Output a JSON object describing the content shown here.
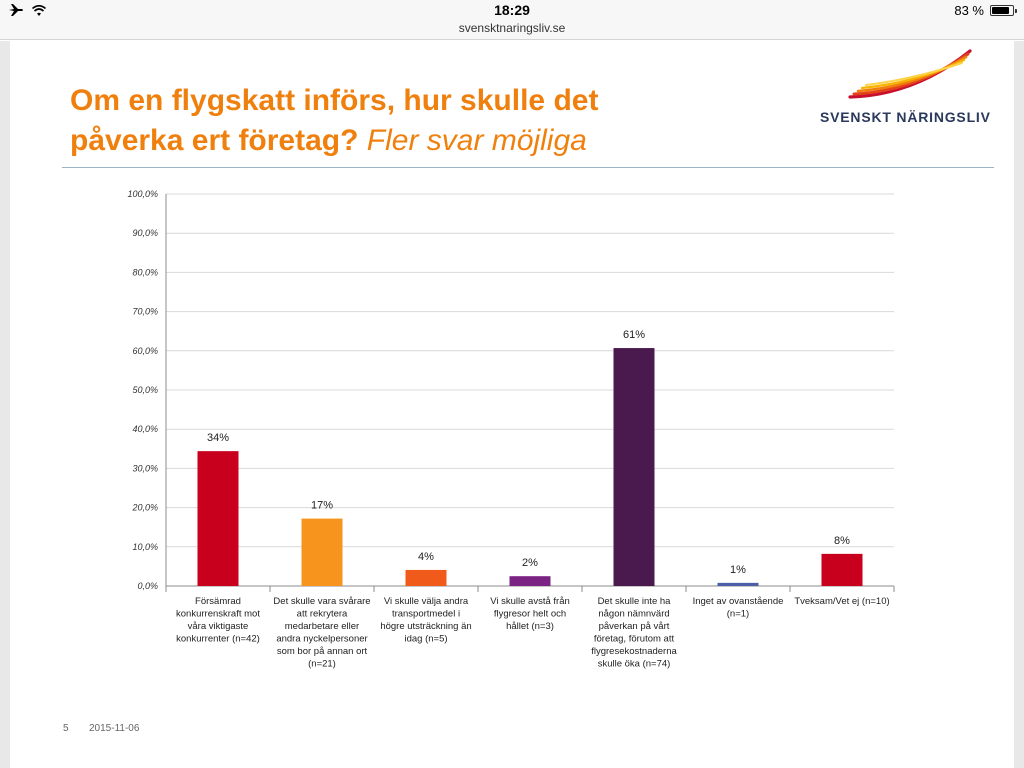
{
  "status_bar": {
    "airplane_icon": "airplane-icon",
    "wifi_icon": "wifi-icon",
    "time": "18:29",
    "url": "svensktnaringsliv.se",
    "battery_percent_text": "83 %",
    "battery_level": 0.83
  },
  "slide": {
    "title_main": "Om en flygskatt införs, hur skulle det påverka ert företag?",
    "title_sub": "Fler svar möjliga",
    "logo_text": "SVENSKT NÄRINGSLIV",
    "logo_colors": [
      "#c8102e",
      "#e4421a",
      "#f0800e",
      "#f7b500",
      "#fcd34a"
    ],
    "page_number": "5",
    "date": "2015-11-06"
  },
  "chart_data": {
    "type": "bar",
    "title": "",
    "xlabel": "",
    "ylabel": "",
    "ylim": [
      0,
      100
    ],
    "grid": true,
    "y_ticks": [
      "0,0%",
      "10,0%",
      "20,0%",
      "30,0%",
      "40,0%",
      "50,0%",
      "60,0%",
      "70,0%",
      "80,0%",
      "90,0%",
      "100,0%"
    ],
    "categories": [
      [
        "Försämrad",
        "konkurrenskraft mot",
        "våra viktigaste",
        "konkurrenter (n=42)"
      ],
      [
        "Det skulle vara svårare",
        "att rekrytera",
        "medarbetare eller",
        "andra nyckelpersoner",
        "som bor på annan ort",
        "(n=21)"
      ],
      [
        "Vi skulle välja andra",
        "transportmedel i",
        "högre utsträckning än",
        "idag (n=5)"
      ],
      [
        "Vi skulle avstå från",
        "flygresor helt och",
        "hållet (n=3)"
      ],
      [
        "Det skulle inte ha",
        "någon nämnvärd",
        "påverkan på vårt",
        "företag, förutom att",
        "flygresekostnaderna",
        "skulle öka (n=74)"
      ],
      [
        "Inget av ovanstående",
        "(n=1)"
      ],
      [
        "Tveksam/Vet ej (n=10)"
      ]
    ],
    "values": [
      34.4,
      17.2,
      4.1,
      2.5,
      60.7,
      0.8,
      8.2
    ],
    "data_labels": [
      "34%",
      "17%",
      "4%",
      "2%",
      "61%",
      "1%",
      "8%"
    ],
    "colors": [
      "#c8001e",
      "#f7941d",
      "#f05a1a",
      "#7b2382",
      "#4a1a4e",
      "#4a5fa8",
      "#c8001e"
    ]
  }
}
